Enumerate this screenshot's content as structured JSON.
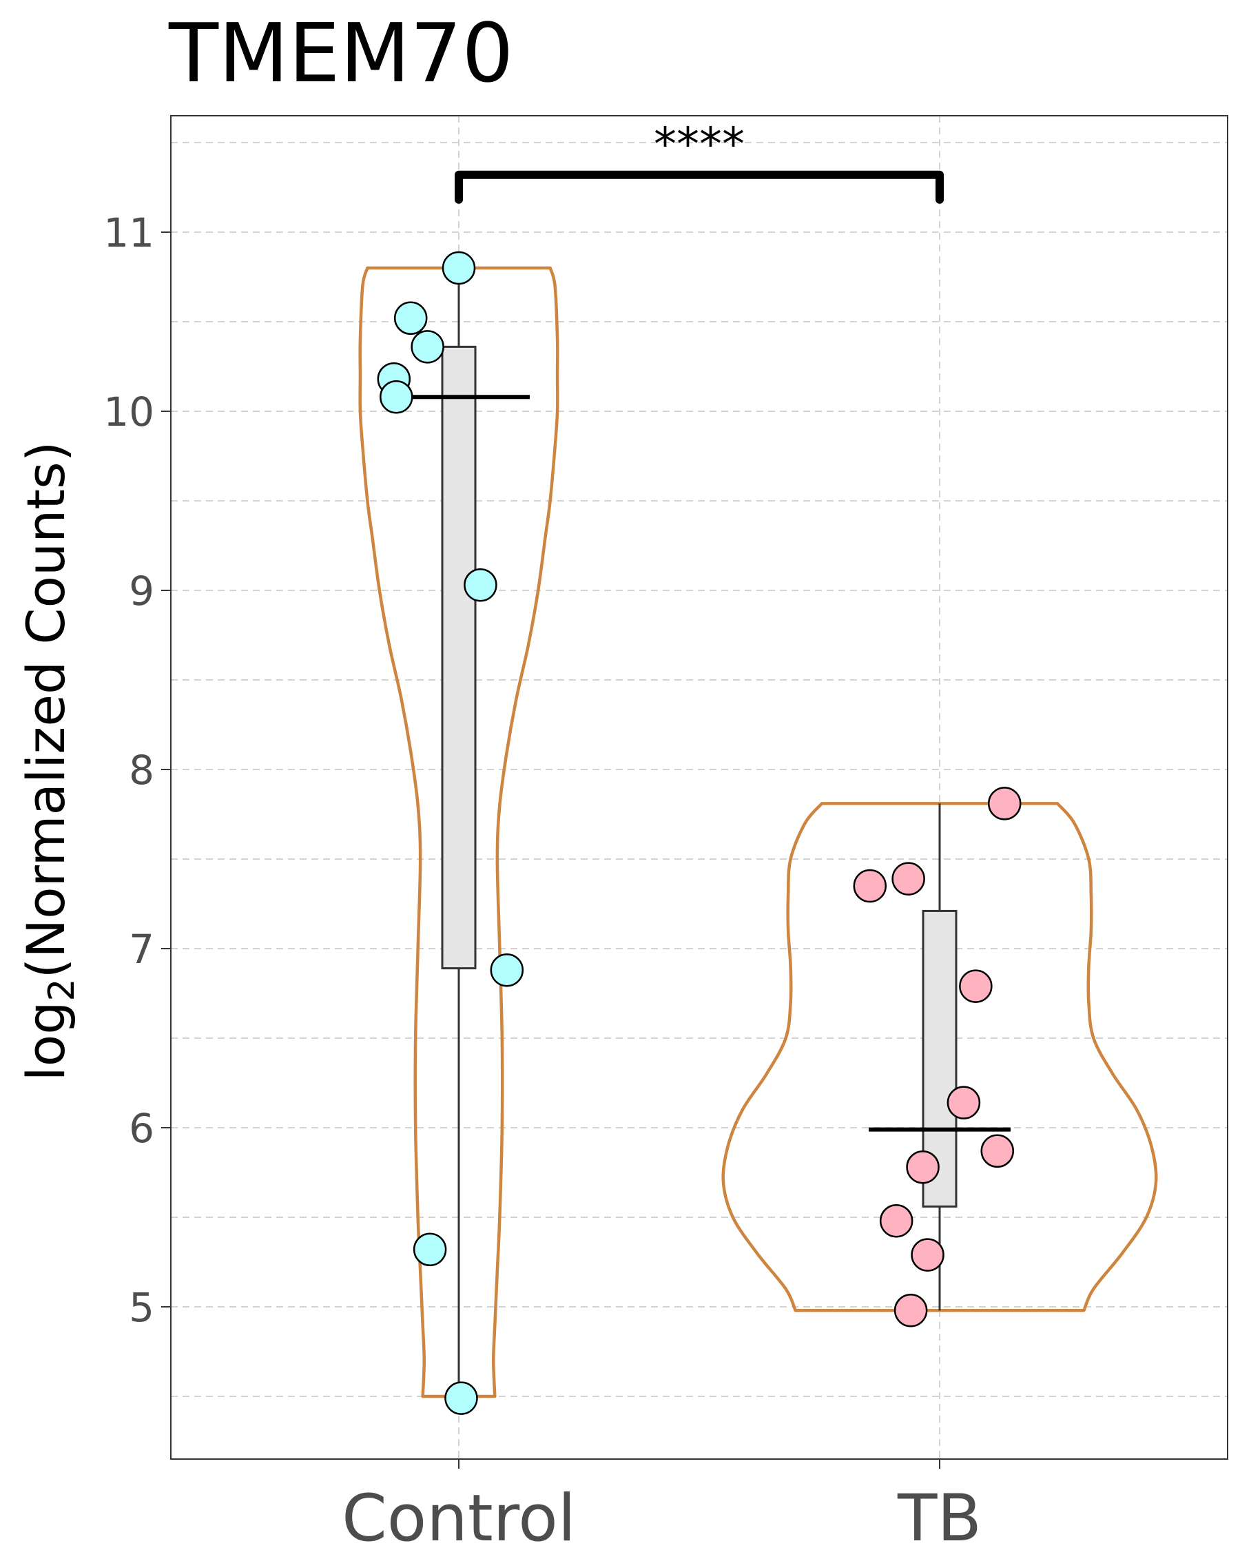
{
  "chart_data": {
    "type": "violin",
    "title": "TMEM70",
    "xlabel": "",
    "ylabel_prefix": "log",
    "ylabel_sub": "2",
    "ylabel_suffix": "(Normalized Counts)",
    "categories": [
      "Control",
      "TB"
    ],
    "ylim": [
      4.15,
      11.65
    ],
    "yticks": [
      5,
      6,
      7,
      8,
      9,
      10,
      11
    ],
    "grid": true,
    "colors": {
      "violin_outline": "#cd853f",
      "box_fill": "#e5e5e5",
      "box_stroke": "#333333",
      "Control": "#b3ffff",
      "TB": "#ffb3c1",
      "point_stroke": "#000000"
    },
    "groups": [
      {
        "name": "Control",
        "points": [
          {
            "x": -0.1,
            "y": 10.52
          },
          {
            "x": -0.065,
            "y": 10.36
          },
          {
            "x": -0.135,
            "y": 10.18
          },
          {
            "x": -0.13,
            "y": 10.08
          },
          {
            "x": 0.0,
            "y": 10.8
          },
          {
            "x": 0.045,
            "y": 9.03
          },
          {
            "x": 0.1,
            "y": 6.88
          },
          {
            "x": -0.06,
            "y": 5.32
          },
          {
            "x": 0.005,
            "y": 4.49
          }
        ],
        "box": {
          "q1": 6.89,
          "median": 10.08,
          "q3": 10.36,
          "min": 4.49,
          "max": 10.8
        },
        "violin": [
          [
            10.8,
            0.19
          ],
          [
            10.7,
            0.2
          ],
          [
            10.4,
            0.205
          ],
          [
            10.2,
            0.205
          ],
          [
            10.0,
            0.205
          ],
          [
            9.8,
            0.2
          ],
          [
            9.5,
            0.19
          ],
          [
            9.3,
            0.18
          ],
          [
            9.0,
            0.165
          ],
          [
            8.7,
            0.145
          ],
          [
            8.4,
            0.12
          ],
          [
            8.1,
            0.1
          ],
          [
            7.8,
            0.085
          ],
          [
            7.5,
            0.08
          ],
          [
            7.0,
            0.085
          ],
          [
            6.5,
            0.09
          ],
          [
            6.0,
            0.09
          ],
          [
            5.5,
            0.085
          ],
          [
            5.2,
            0.08
          ],
          [
            4.9,
            0.075
          ],
          [
            4.7,
            0.072
          ],
          [
            4.5,
            0.075
          ]
        ]
      },
      {
        "name": "TB",
        "points": [
          {
            "x": 0.135,
            "y": 7.81
          },
          {
            "x": -0.145,
            "y": 7.35
          },
          {
            "x": -0.065,
            "y": 7.39
          },
          {
            "x": 0.075,
            "y": 6.79
          },
          {
            "x": 0.05,
            "y": 6.14
          },
          {
            "x": 0.12,
            "y": 5.87
          },
          {
            "x": -0.035,
            "y": 5.78
          },
          {
            "x": -0.09,
            "y": 5.48
          },
          {
            "x": -0.025,
            "y": 5.29
          },
          {
            "x": -0.06,
            "y": 4.98
          }
        ],
        "box": {
          "q1": 5.56,
          "median": 5.99,
          "q3": 7.21,
          "min": 4.98,
          "max": 7.81
        },
        "violin": [
          [
            7.81,
            0.245
          ],
          [
            7.7,
            0.28
          ],
          [
            7.5,
            0.31
          ],
          [
            7.3,
            0.315
          ],
          [
            7.1,
            0.315
          ],
          [
            6.9,
            0.31
          ],
          [
            6.7,
            0.31
          ],
          [
            6.5,
            0.32
          ],
          [
            6.3,
            0.36
          ],
          [
            6.1,
            0.41
          ],
          [
            5.9,
            0.44
          ],
          [
            5.7,
            0.45
          ],
          [
            5.5,
            0.43
          ],
          [
            5.3,
            0.38
          ],
          [
            5.1,
            0.32
          ],
          [
            4.98,
            0.3
          ]
        ]
      }
    ],
    "comparison": {
      "from": "Control",
      "to": "TB",
      "y": 11.32,
      "label": "****"
    }
  }
}
